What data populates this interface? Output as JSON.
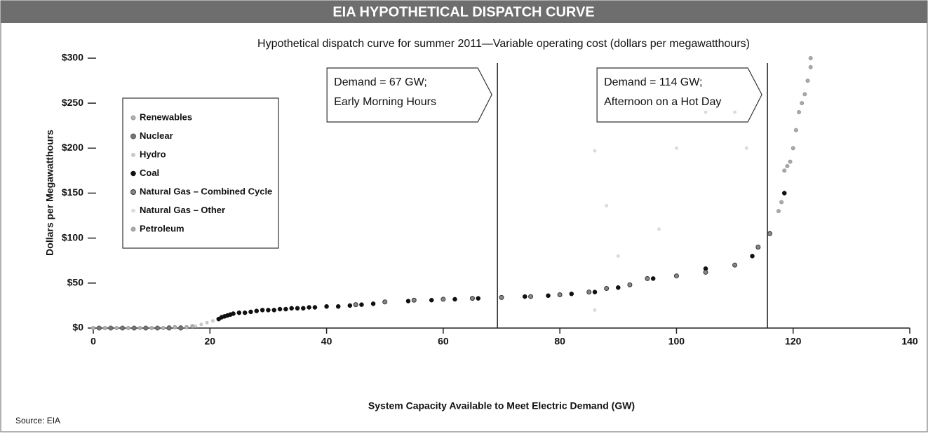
{
  "chart_data": {
    "type": "scatter",
    "header": "EIA HYPOTHETICAL DISPATCH CURVE",
    "title": "Hypothetical dispatch curve for summer 2011—Variable operating cost (dollars per megawatthours)",
    "xlabel": "System Capacity Available to Meet Electric Demand (GW)",
    "ylabel": "Dollars per Megawatthours",
    "source": "Source: EIA",
    "legend": "upper left",
    "xlim": [
      0,
      140
    ],
    "ylim": [
      0,
      300
    ],
    "xticks": [
      0,
      20,
      40,
      60,
      80,
      100,
      120,
      140
    ],
    "yticks": [
      {
        "value": 0,
        "label": "$0"
      },
      {
        "value": 50,
        "label": "$50"
      },
      {
        "value": 100,
        "label": "$100"
      },
      {
        "value": 150,
        "label": "$150"
      },
      {
        "value": 200,
        "label": "$200"
      },
      {
        "value": 250,
        "label": "$250"
      },
      {
        "value": 300,
        "label": "$300"
      }
    ],
    "annotations": [
      {
        "lines": [
          "Demand = 67 GW;",
          "Early Morning Hours"
        ],
        "x": 69.3
      },
      {
        "lines": [
          "Demand = 114 GW;",
          "Afternoon on a Hot Day"
        ],
        "x": 115.6
      }
    ],
    "series": [
      {
        "name": "Renewables",
        "color": "#b0b0b0",
        "x": [
          0,
          1,
          2,
          3,
          4,
          5,
          6,
          7,
          8,
          9,
          10,
          11,
          12,
          13,
          14,
          15,
          16,
          17
        ],
        "y": [
          0,
          0,
          0,
          0,
          0,
          0,
          0,
          0,
          0,
          0,
          0,
          0,
          0,
          1,
          1,
          1,
          1,
          2
        ]
      },
      {
        "name": "Nuclear",
        "color": "#777777",
        "x": [
          1,
          3,
          5,
          7,
          9,
          11,
          13,
          15
        ],
        "y": [
          0,
          0,
          0,
          0,
          0,
          0,
          0,
          0
        ]
      },
      {
        "name": "Hydro",
        "color": "#cccccc",
        "x": [
          17.5,
          18.5,
          19.5,
          20.5
        ],
        "y": [
          2,
          4,
          6,
          8
        ]
      },
      {
        "name": "Coal",
        "color": "#111111",
        "x": [
          21.5,
          22,
          22.5,
          23,
          23.5,
          24,
          25,
          26,
          27,
          28,
          29,
          30,
          31,
          32,
          33,
          34,
          35,
          36,
          37,
          38,
          40,
          42,
          44,
          46,
          48,
          50,
          54,
          58,
          62,
          66,
          70,
          74,
          78,
          82,
          86,
          90,
          96,
          105,
          113,
          118.5
        ],
        "y": [
          10,
          12,
          13,
          14,
          15,
          16,
          17,
          17,
          18,
          19,
          20,
          20,
          20,
          21,
          21,
          22,
          22,
          22,
          23,
          23,
          24,
          24,
          25,
          26,
          27,
          29,
          30,
          31,
          32,
          33,
          34,
          35,
          36,
          38,
          40,
          45,
          55,
          66,
          80,
          150
        ]
      },
      {
        "name": "Natural Gas – Combined Cycle",
        "color": "#888888",
        "x": [
          45,
          50,
          55,
          60,
          65,
          70,
          75,
          80,
          85,
          88,
          92,
          95,
          100,
          105,
          110,
          114,
          116
        ],
        "y": [
          26,
          29,
          31,
          32,
          33,
          34,
          35,
          37,
          40,
          44,
          48,
          55,
          58,
          62,
          70,
          90,
          105
        ]
      },
      {
        "name": "Natural Gas – Other",
        "color": "#dddddd",
        "x": [
          86,
          86,
          88,
          90,
          97,
          100,
          105,
          110,
          112
        ],
        "y": [
          20,
          197,
          136,
          80,
          110,
          200,
          240,
          240,
          200
        ]
      },
      {
        "name": "Petroleum",
        "color": "#aaaaaa",
        "x": [
          117.5,
          118,
          118.5,
          119,
          119.5,
          120,
          120.5,
          121,
          121.5,
          122,
          122.5,
          123,
          123
        ],
        "y": [
          130,
          140,
          175,
          180,
          185,
          200,
          220,
          240,
          250,
          260,
          275,
          290,
          300
        ]
      }
    ]
  }
}
